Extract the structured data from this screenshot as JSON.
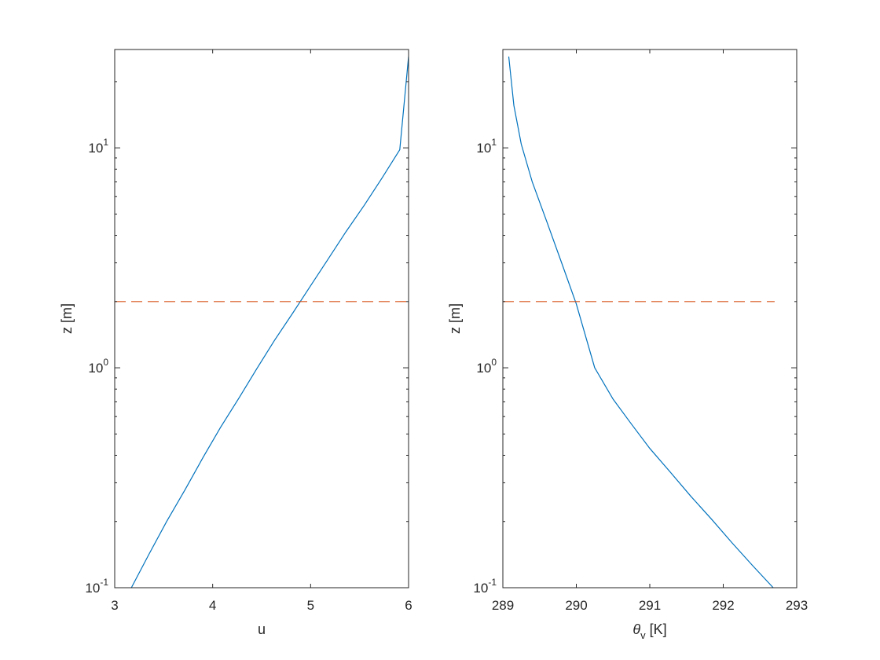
{
  "chart_data": [
    {
      "type": "line",
      "xlabel": "u",
      "ylabel": "z [m]",
      "xlim": [
        3,
        6
      ],
      "ylim": [
        0.1,
        28
      ],
      "yscale": "log",
      "grid": false,
      "xticks": [
        3,
        4,
        5,
        6
      ],
      "xtick_labels": [
        "3",
        "4",
        "5",
        "6"
      ],
      "yticks": [
        0.1,
        1,
        10
      ],
      "ytick_labels": [
        {
          "base": "10",
          "exp": "-1"
        },
        {
          "base": "10",
          "exp": "0"
        },
        {
          "base": "10",
          "exp": "1"
        }
      ],
      "series": [
        {
          "style": "solid",
          "color": "#0072BD",
          "x": [
            3.17,
            3.35,
            3.53,
            3.72,
            3.9,
            4.08,
            4.27,
            4.45,
            4.63,
            4.82,
            5.0,
            5.18,
            5.36,
            5.55,
            5.73,
            5.91,
            6.0
          ],
          "z": [
            0.1,
            0.142,
            0.2,
            0.28,
            0.39,
            0.535,
            0.73,
            0.99,
            1.33,
            1.78,
            2.36,
            3.13,
            4.15,
            5.5,
            7.3,
            9.8,
            26.0
          ]
        },
        {
          "style": "dashed",
          "color": "#D95319",
          "x": [
            3.0,
            6.0
          ],
          "z": [
            2.0,
            2.0
          ]
        }
      ]
    },
    {
      "type": "line",
      "xlabel_symbol": "θ",
      "xlabel_subscript": "v",
      "xlabel_unit": "[K]",
      "ylabel": "z [m]",
      "xlim": [
        289,
        293
      ],
      "ylim": [
        0.1,
        28
      ],
      "yscale": "log",
      "grid": false,
      "xticks": [
        289,
        290,
        291,
        292,
        293
      ],
      "xtick_labels": [
        "289",
        "290",
        "291",
        "292",
        "293"
      ],
      "yticks": [
        0.1,
        1,
        10
      ],
      "ytick_labels": [
        {
          "base": "10",
          "exp": "-1"
        },
        {
          "base": "10",
          "exp": "0"
        },
        {
          "base": "10",
          "exp": "1"
        }
      ],
      "series": [
        {
          "style": "solid",
          "color": "#0072BD",
          "x": [
            292.68,
            292.4,
            292.12,
            291.84,
            291.56,
            291.28,
            291.0,
            290.75,
            290.5,
            290.25,
            290.0,
            289.8,
            289.6,
            289.4,
            289.25,
            289.15,
            289.08
          ],
          "z": [
            0.1,
            0.126,
            0.16,
            0.205,
            0.26,
            0.335,
            0.43,
            0.555,
            0.72,
            1.0,
            1.95,
            3.0,
            4.6,
            7.0,
            10.4,
            15.6,
            26.0
          ]
        },
        {
          "style": "dashed",
          "color": "#D95319",
          "x": [
            289.0,
            292.7
          ],
          "z": [
            2.0,
            2.0
          ]
        }
      ]
    }
  ]
}
